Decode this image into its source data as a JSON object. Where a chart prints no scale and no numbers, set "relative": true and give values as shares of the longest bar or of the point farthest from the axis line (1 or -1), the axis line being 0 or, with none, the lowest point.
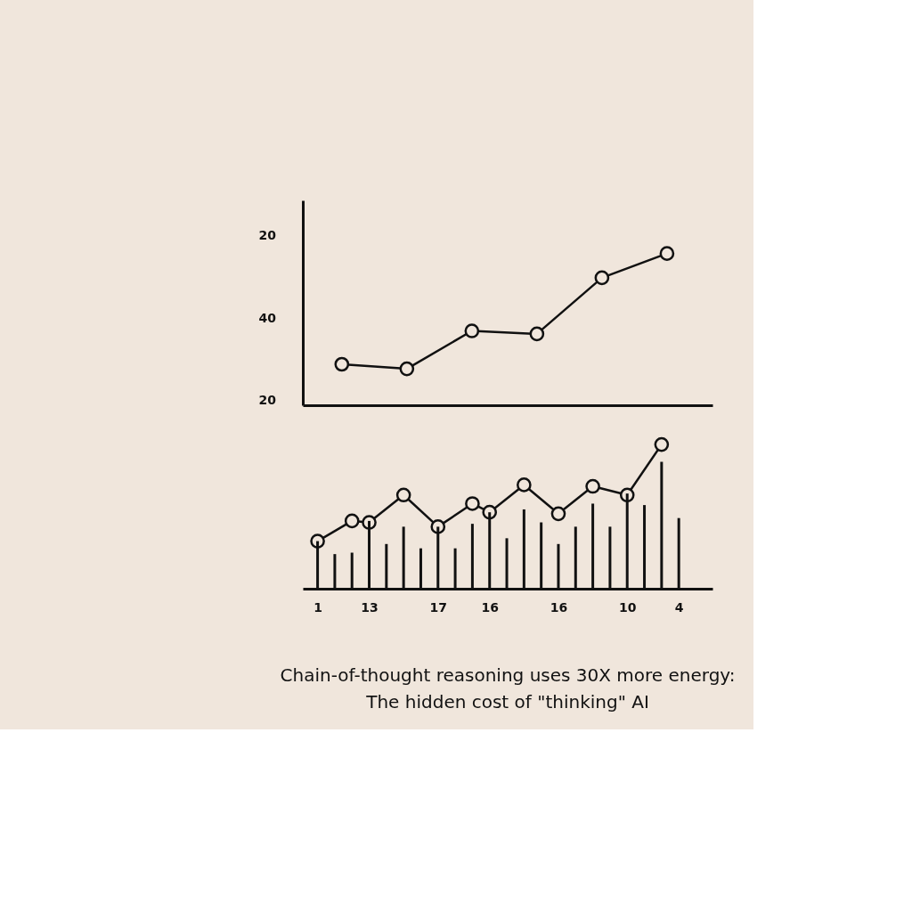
{
  "chart_data": [
    {
      "type": "line",
      "relative": true,
      "categories": [
        null,
        null,
        null,
        null,
        null,
        null
      ],
      "grid": false,
      "tick_labels": false,
      "marker": "circle",
      "line_style": "solid",
      "series": [
        {
          "color": "#111111",
          "values": [
            0.27,
            0.24,
            0.49,
            0.47,
            0.84,
            1.0
          ]
        }
      ],
      "annotations": [
        "20",
        "40",
        "20"
      ]
    },
    {
      "type": "bar",
      "relative": true,
      "categories": [
        "1",
        null,
        null,
        "13",
        null,
        null,
        null,
        "17",
        null,
        null,
        "16",
        null,
        null,
        null,
        "16",
        null,
        null,
        null,
        "10",
        null,
        null,
        "4"
      ],
      "grid": false,
      "tick_labels": "x",
      "line_style": "solid",
      "series": [
        {
          "type": "bar",
          "color": "#111111",
          "values": [
            0.33,
            0.24,
            0.25,
            0.47,
            0.31,
            0.43,
            0.28,
            0.43,
            0.28,
            0.45,
            0.53,
            0.35,
            0.55,
            0.46,
            0.31,
            0.43,
            0.59,
            0.43,
            0.66,
            0.58,
            0.88,
            0.49
          ]
        },
        {
          "type": "line",
          "color": "#111111",
          "marker": "circle",
          "values": [
            0.33,
            null,
            0.47,
            0.46,
            null,
            0.65,
            null,
            0.43,
            null,
            0.59,
            0.53,
            null,
            0.72,
            null,
            0.52,
            null,
            0.71,
            null,
            0.65,
            null,
            1.0,
            null
          ]
        }
      ],
      "annotations": [
        "Chain-of-thought reasoning uses 30X more energy:",
        "The hidden cost of \"thinking\"    AI"
      ]
    }
  ]
}
